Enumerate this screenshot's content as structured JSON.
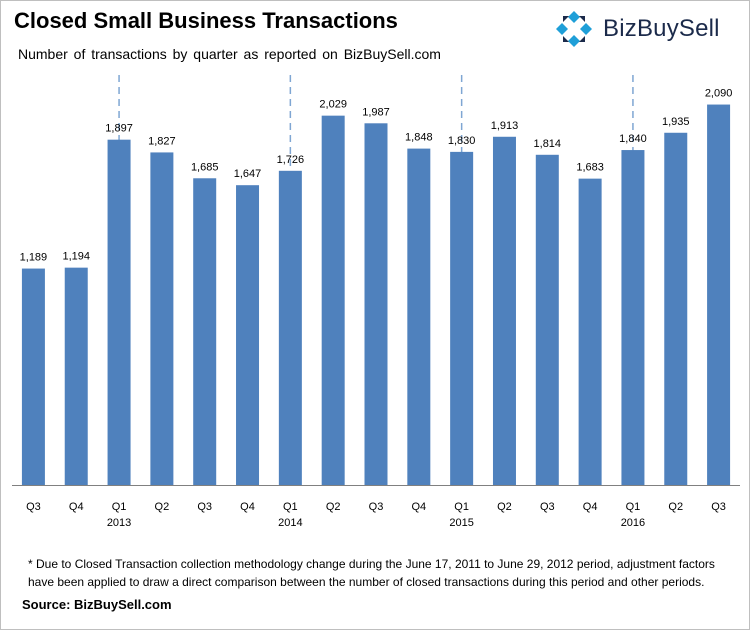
{
  "header": {
    "title": "Closed Small Business Transactions",
    "subtitle": "Number of transactions by quarter as reported on BizBuySell.com",
    "logo_text": "BizBuySell",
    "logo_icon": "bizbuysell-logo-icon"
  },
  "colors": {
    "bar": "#4f81bd",
    "logo_blue": "#1f9fd8",
    "logo_dark": "#1b2a4a",
    "divider": "#7fa6d3"
  },
  "chart_data": {
    "type": "bar",
    "categories": [
      "Q3",
      "Q4",
      "Q1",
      "Q2",
      "Q3",
      "Q4",
      "Q1",
      "Q2",
      "Q3",
      "Q4",
      "Q1",
      "Q2",
      "Q3",
      "Q4",
      "Q1",
      "Q2",
      "Q3"
    ],
    "years": [
      "2013",
      "2014",
      "2015",
      "2016"
    ],
    "values": [
      1189,
      1194,
      1897,
      1827,
      1685,
      1647,
      1726,
      2029,
      1987,
      1848,
      1830,
      1913,
      1814,
      1683,
      1840,
      1935,
      2090
    ],
    "data_labels": [
      "1,189",
      "1,194",
      "1,897",
      "1,827",
      "1,685",
      "1,647",
      "1,726",
      "2,029",
      "1,987",
      "1,848",
      "1,830",
      "1,913",
      "1,814",
      "1,683",
      "1,840",
      "1,935",
      "2,090"
    ],
    "year_index": [
      2,
      6,
      10,
      14
    ],
    "ylim": [
      0,
      2200
    ],
    "grid": false,
    "legend": "none"
  },
  "footnote": "* Due to Closed Transaction collection methodology change during the June 17, 2011 to June 29, 2012 period, adjustment factors have been applied to draw a direct comparison between the number of closed transactions during this period and other periods.",
  "source": "Source: BizBuySell.com"
}
